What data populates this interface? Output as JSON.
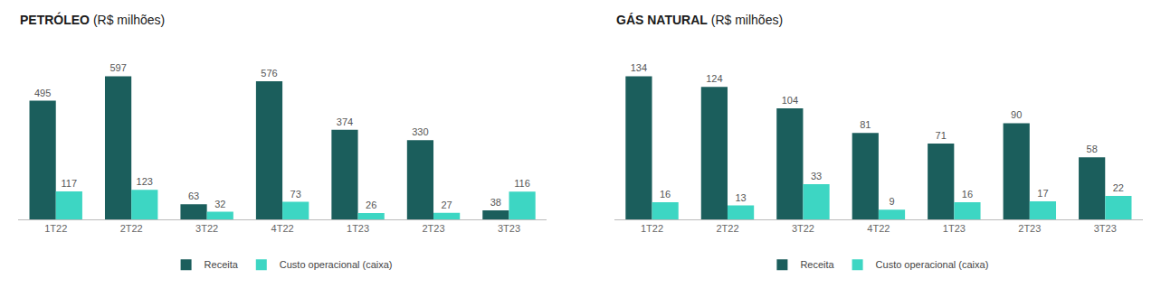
{
  "chart_data": [
    {
      "type": "bar",
      "title": "PETRÓLEO (R$ milhões)",
      "categories": [
        "1T22",
        "2T22",
        "3T22",
        "4T22",
        "1T23",
        "2T23",
        "3T23"
      ],
      "series": [
        {
          "name": "Receita",
          "color": "#1b5e5c",
          "values": [
            495,
            597,
            63,
            576,
            374,
            330,
            38
          ]
        },
        {
          "name": "Custo operacional (caixa)",
          "color": "#3dd6c3",
          "values": [
            117,
            123,
            32,
            73,
            26,
            27,
            116
          ]
        }
      ],
      "ylim": [
        0,
        764.16
      ],
      "data_labels": true,
      "tick_labels": "x",
      "grid": false,
      "legend": "bottom"
    },
    {
      "type": "bar",
      "title": "GÁS NATURAL (R$ milhões)",
      "categories": [
        "1T22",
        "2T22",
        "3T22",
        "4T22",
        "1T23",
        "2T23",
        "3T23"
      ],
      "series": [
        {
          "name": "Receita",
          "color": "#1b5e5c",
          "values": [
            134,
            124,
            104,
            81,
            71,
            90,
            58
          ]
        },
        {
          "name": "Custo operacional (caixa)",
          "color": "#3dd6c3",
          "values": [
            16,
            13,
            33,
            9,
            16,
            17,
            22
          ]
        }
      ],
      "ylim": [
        0,
        171.52
      ],
      "data_labels": true,
      "tick_labels": "x",
      "grid": false,
      "legend": "bottom"
    }
  ]
}
